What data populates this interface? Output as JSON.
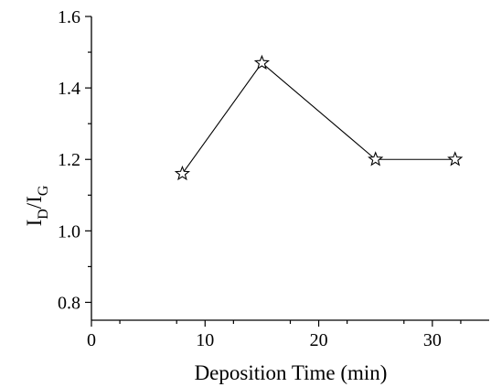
{
  "chart_data": {
    "type": "line",
    "title": "",
    "xlabel": "Deposition Time (min)",
    "ylabel_main": "I",
    "ylabel_sub1": "D",
    "ylabel_slash": "/I",
    "ylabel_sub2": "G",
    "xlim": [
      0,
      35
    ],
    "ylim": [
      0.75,
      1.6
    ],
    "xticks": [
      0,
      10,
      20,
      30
    ],
    "xtick_labels": [
      "0",
      "10",
      "20",
      "30"
    ],
    "yticks": [
      0.8,
      1.0,
      1.2,
      1.4,
      1.6
    ],
    "ytick_labels": [
      "0.8",
      "1.0",
      "1.2",
      "1.4",
      "1.6"
    ],
    "grid": false,
    "marker": "open-star",
    "series": [
      {
        "x": [
          8,
          15,
          25,
          32
        ],
        "y": [
          1.16,
          1.47,
          1.2,
          1.2
        ]
      }
    ]
  }
}
